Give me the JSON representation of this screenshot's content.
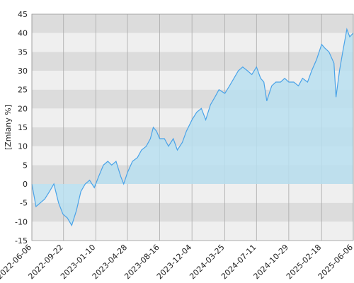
{
  "chart_data": {
    "type": "area",
    "y_label": "[Zmiany %]",
    "x": [
      "2022-06-06",
      "2022-06-20",
      "2022-07-05",
      "2022-07-20",
      "2022-08-05",
      "2022-08-20",
      "2022-09-05",
      "2022-09-20",
      "2022-10-05",
      "2022-10-20",
      "2022-11-05",
      "2022-11-20",
      "2022-12-05",
      "2022-12-20",
      "2023-01-05",
      "2023-01-20",
      "2023-02-05",
      "2023-02-20",
      "2023-03-05",
      "2023-03-20",
      "2023-04-05",
      "2023-04-15",
      "2023-04-28",
      "2023-05-15",
      "2023-06-01",
      "2023-06-15",
      "2023-07-01",
      "2023-07-15",
      "2023-07-25",
      "2023-08-05",
      "2023-08-16",
      "2023-09-01",
      "2023-09-15",
      "2023-10-01",
      "2023-10-15",
      "2023-11-01",
      "2023-11-15",
      "2023-12-04",
      "2023-12-20",
      "2024-01-05",
      "2024-01-20",
      "2024-02-05",
      "2024-02-20",
      "2024-03-05",
      "2024-03-25",
      "2024-04-10",
      "2024-04-25",
      "2024-05-10",
      "2024-05-25",
      "2024-06-10",
      "2024-06-25",
      "2024-07-11",
      "2024-07-25",
      "2024-08-05",
      "2024-08-15",
      "2024-09-01",
      "2024-09-15",
      "2024-10-01",
      "2024-10-15",
      "2024-10-29",
      "2024-11-15",
      "2024-12-01",
      "2024-12-15",
      "2025-01-01",
      "2025-01-15",
      "2025-02-01",
      "2025-02-18",
      "2025-03-01",
      "2025-03-15",
      "2025-04-01",
      "2025-04-08",
      "2025-04-20",
      "2025-05-01",
      "2025-05-15",
      "2025-05-25",
      "2025-06-06"
    ],
    "values": [
      0,
      -6,
      -5,
      -4,
      -2,
      0,
      -5,
      -8,
      -9,
      -11,
      -7,
      -2,
      0,
      1,
      -1,
      2,
      5,
      6,
      5,
      6,
      2,
      0,
      3,
      6,
      7,
      9,
      10,
      12,
      15,
      14,
      12,
      12,
      10,
      12,
      9,
      11,
      14,
      17,
      19,
      20,
      17,
      21,
      23,
      25,
      24,
      26,
      28,
      30,
      31,
      30,
      29,
      31,
      28,
      27,
      22,
      26,
      27,
      27,
      28,
      27,
      27,
      26,
      28,
      27,
      30,
      33,
      37,
      36,
      35,
      32,
      23,
      30,
      35,
      41,
      39,
      40
    ],
    "line_color": "#4aa3e8",
    "fill_color": "#b8dff0",
    "xlim": [
      "2022-06-06",
      "2025-06-06"
    ],
    "xticks": [
      "2022-06-06",
      "2022-09-22",
      "2023-01-10",
      "2023-04-28",
      "2023-08-16",
      "2023-12-04",
      "2024-03-25",
      "2024-07-11",
      "2024-10-29",
      "2025-02-18",
      "2025-06-06"
    ],
    "ylim": [
      -15,
      45
    ],
    "yticks": [
      -15,
      -10,
      -5,
      0,
      5,
      10,
      15,
      20,
      25,
      30,
      35,
      40,
      45
    ],
    "grid": true
  }
}
